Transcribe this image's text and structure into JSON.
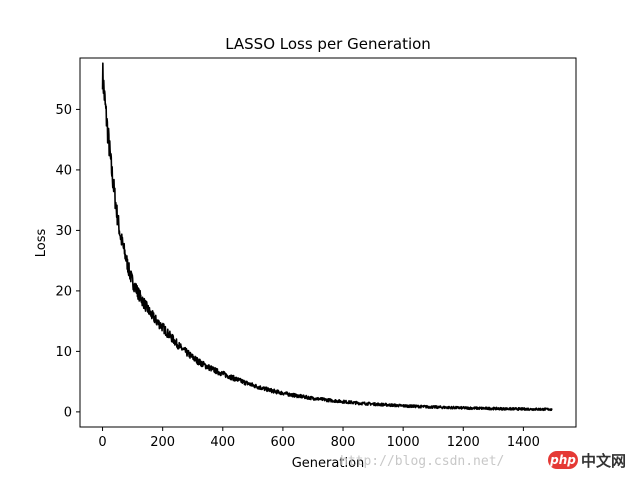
{
  "chart_data": {
    "type": "line",
    "title": "LASSO Loss per Generation",
    "xlabel": "Generation",
    "ylabel": "Loss",
    "xlim": [
      -75,
      1575
    ],
    "ylim": [
      -2.5,
      58.5
    ],
    "xticks": [
      0,
      200,
      400,
      600,
      800,
      1000,
      1200,
      1400
    ],
    "yticks": [
      0,
      10,
      20,
      30,
      40,
      50
    ],
    "grid": false,
    "line_color": "#000000",
    "series": [
      {
        "x": [
          0,
          10,
          20,
          30,
          40,
          50,
          60,
          70,
          80,
          90,
          100,
          120,
          140,
          160,
          180,
          200,
          220,
          240,
          260,
          280,
          300,
          320,
          340,
          360,
          380,
          400,
          430,
          460,
          500,
          540,
          580,
          620,
          660,
          700,
          750,
          800,
          850,
          900,
          950,
          1000,
          1050,
          1100,
          1150,
          1200,
          1250,
          1300,
          1350,
          1400,
          1450,
          1495
        ],
        "y": [
          56,
          50,
          45,
          40,
          36,
          32,
          29,
          27,
          25,
          23,
          21.5,
          19.5,
          17.8,
          16.2,
          15,
          14,
          12.8,
          11.7,
          10.6,
          9.8,
          9,
          8.3,
          7.7,
          7.2,
          6.7,
          6.3,
          5.7,
          5.1,
          4.4,
          3.8,
          3.3,
          2.9,
          2.55,
          2.25,
          1.95,
          1.7,
          1.45,
          1.3,
          1.15,
          1.0,
          0.9,
          0.8,
          0.72,
          0.65,
          0.6,
          0.55,
          0.5,
          0.47,
          0.44,
          0.42
        ]
      }
    ]
  },
  "watermark": {
    "url_text": "http://blog.csdn.net/",
    "badge_text": "php",
    "brand_text": "中文网"
  }
}
